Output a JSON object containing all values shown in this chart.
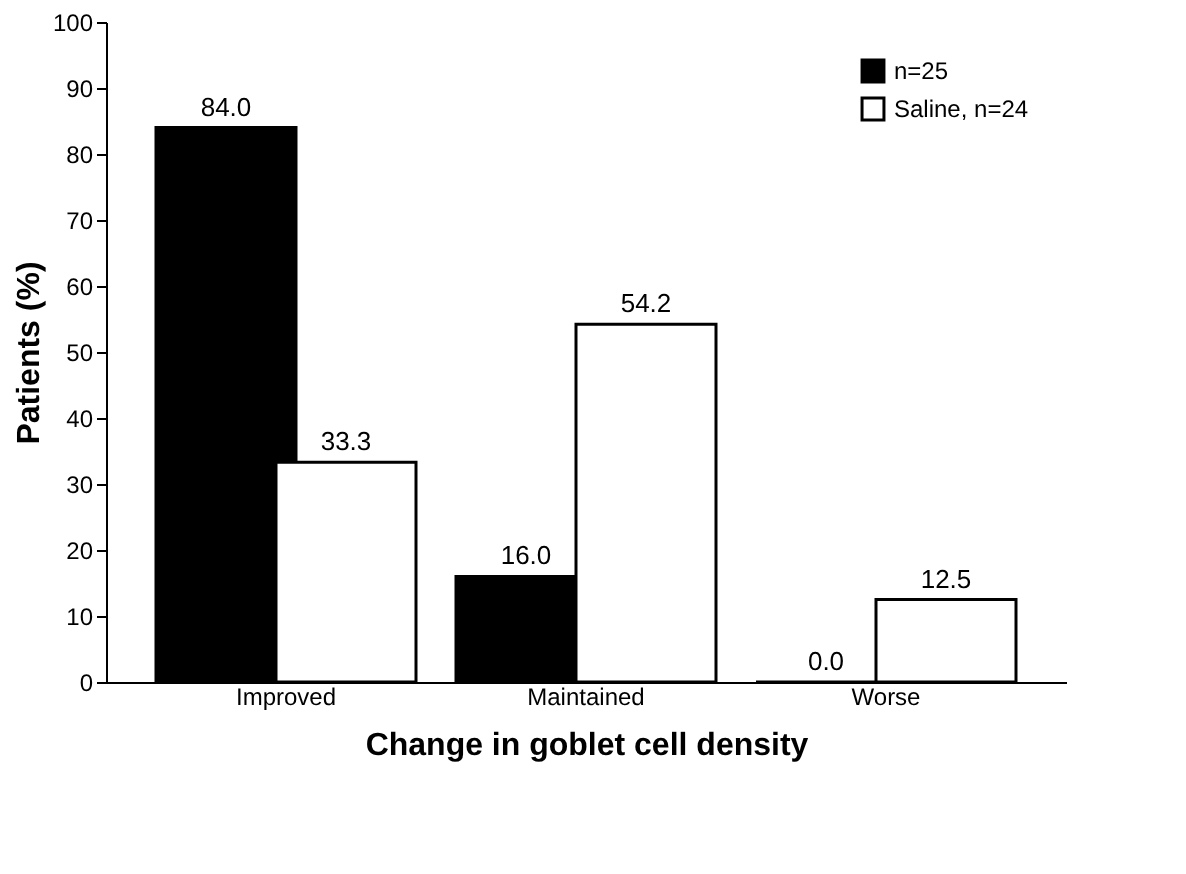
{
  "chart_data": {
    "type": "bar",
    "xlabel": "Change in goblet cell density",
    "ylabel": "Patients (%)",
    "categories": [
      "Improved",
      "Maintained",
      "Worse"
    ],
    "series": [
      {
        "name": "n=25",
        "color": "#000000",
        "values": [
          84.0,
          16.0,
          0.0
        ],
        "value_labels": [
          "84.0",
          "16.0",
          "0.0"
        ]
      },
      {
        "name": "Saline, n=24",
        "color": "#ffffff",
        "values": [
          33.3,
          54.2,
          12.5
        ],
        "value_labels": [
          "33.3",
          "54.2",
          "12.5"
        ]
      }
    ],
    "ylim": [
      0,
      100
    ],
    "yticks": [
      0,
      10,
      20,
      30,
      40,
      50,
      60,
      70,
      80,
      90,
      100
    ],
    "grid": false,
    "legend": "top right"
  }
}
